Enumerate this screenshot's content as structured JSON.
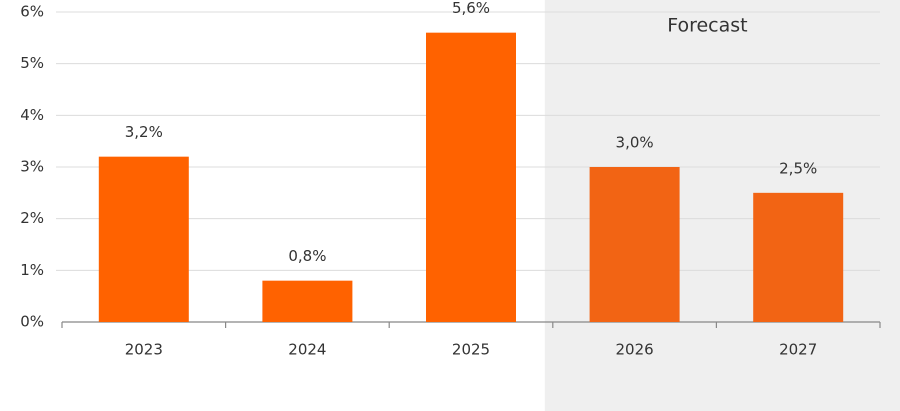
{
  "chart_data": {
    "type": "bar",
    "categories": [
      "2023",
      "2024",
      "2025",
      "2026",
      "2027"
    ],
    "values": [
      3.2,
      0.8,
      5.6,
      3.0,
      2.5
    ],
    "value_labels": [
      "3,2%",
      "0,8%",
      "5,6%",
      "3,0%",
      "2,5%"
    ],
    "colors": [
      "#ff6200",
      "#ff6200",
      "#ff6200",
      "#f26414",
      "#f26414"
    ],
    "ylim": [
      0,
      6
    ],
    "yticks": [
      {
        "value": 0,
        "label": "0%"
      },
      {
        "value": 1,
        "label": "1%"
      },
      {
        "value": 2,
        "label": "2%"
      },
      {
        "value": 3,
        "label": "3%"
      },
      {
        "value": 4,
        "label": "4%"
      },
      {
        "value": 5,
        "label": "5%"
      },
      {
        "value": 6,
        "label": "6%"
      }
    ],
    "grid": true,
    "forecast": {
      "label": "Forecast",
      "from": "2026"
    }
  }
}
